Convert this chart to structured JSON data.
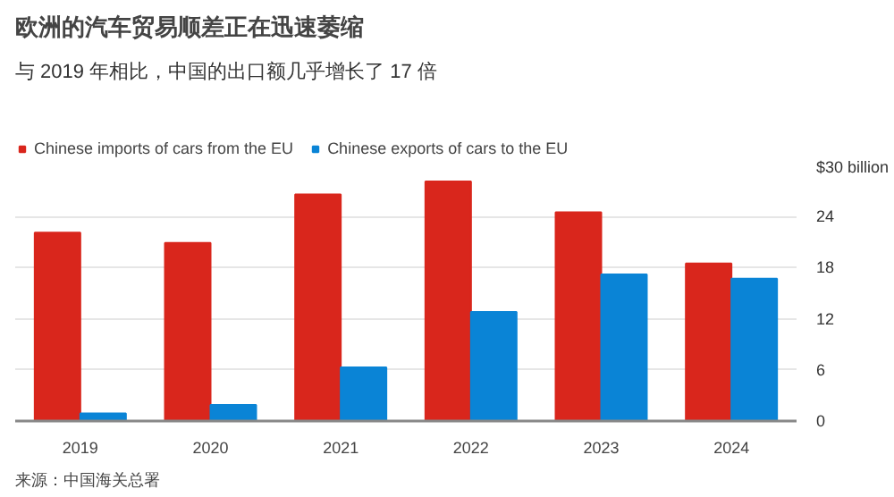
{
  "chart_data": {
    "type": "bar",
    "title": "欧洲的汽车贸易顺差正在迅速萎缩",
    "subtitle": "与 2019 年相比，中国的出口额几乎增长了 17 倍",
    "categories": [
      "2019",
      "2020",
      "2021",
      "2022",
      "2023",
      "2024"
    ],
    "series": [
      {
        "name": "Chinese imports of cars from the EU",
        "color": "#d9261c",
        "values": [
          22.1,
          20.9,
          26.6,
          28.1,
          24.5,
          18.5
        ]
      },
      {
        "name": "Chinese exports of cars to the EU",
        "color": "#0a84d6",
        "values": [
          0.9,
          1.9,
          6.3,
          12.8,
          17.2,
          16.7
        ]
      }
    ],
    "ylim": [
      0,
      30
    ],
    "yticks": [
      0,
      6,
      12,
      18,
      24,
      {
        "value": 30,
        "label": "$30 billion"
      }
    ],
    "grid": "y",
    "legend": "top",
    "annotations": [
      "来源：中国海关总署"
    ]
  }
}
